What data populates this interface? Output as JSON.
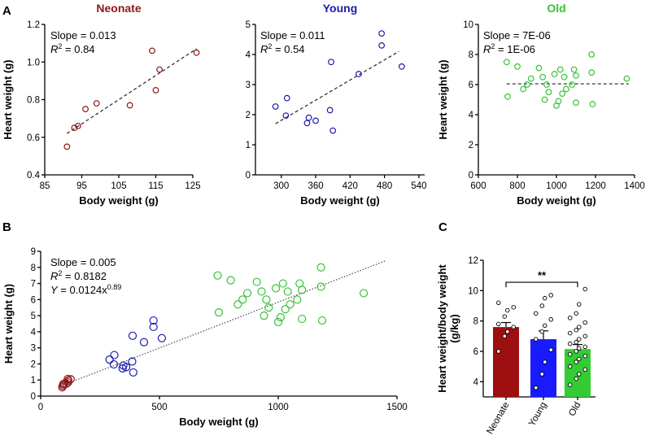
{
  "colors": {
    "neonate": "#8b1a1a",
    "young": "#1c1cad",
    "old": "#36c236",
    "neonate_bar": "#9e0f0f",
    "young_bar": "#1a1aff",
    "old_bar": "#33cc33"
  },
  "panel_letters": {
    "a": "A",
    "b": "B",
    "c": "C"
  },
  "chart_data": [
    {
      "id": "A-neonate",
      "type": "scatter",
      "title": "Neonate",
      "color": "neonate",
      "xlabel": "Body weight (g)",
      "ylabel": "Heart weight (g)",
      "xlim": [
        85,
        125
      ],
      "ylim": [
        0.4,
        1.2
      ],
      "xticks": [
        85,
        95,
        105,
        115,
        125
      ],
      "yticks": [
        0.4,
        0.6,
        0.8,
        1.0,
        1.2
      ],
      "xtick_labels": [
        "85",
        "95",
        "105",
        "115",
        "125"
      ],
      "ytick_labels": [
        "0.4",
        "0.6",
        "0.8",
        "1.0",
        "1.2"
      ],
      "x": [
        91,
        93,
        94,
        96,
        99,
        108,
        114,
        115,
        116,
        126
      ],
      "y": [
        0.55,
        0.65,
        0.66,
        0.75,
        0.78,
        0.77,
        1.06,
        0.85,
        0.96,
        1.05
      ],
      "trend": {
        "style": "dashed",
        "x": [
          91,
          126
        ],
        "y": [
          0.62,
          1.07
        ]
      },
      "annotation": {
        "slope": "Slope = 0.013",
        "r2_prefix": "R",
        "r2_exp": "2",
        "r2_value": " = 0.84"
      }
    },
    {
      "id": "A-young",
      "type": "scatter",
      "title": "Young",
      "color": "young",
      "xlabel": "Body weight (g)",
      "ylabel": "",
      "xlim": [
        255,
        550
      ],
      "ylim": [
        0,
        5
      ],
      "xticks": [
        300,
        360,
        420,
        480,
        540
      ],
      "yticks": [
        0,
        1,
        2,
        3,
        4,
        5
      ],
      "xtick_labels": [
        "300",
        "360",
        "420",
        "480",
        "540"
      ],
      "ytick_labels": [
        "0",
        "1",
        "2",
        "3",
        "4",
        "5"
      ],
      "x": [
        290,
        308,
        310,
        345,
        348,
        360,
        385,
        387,
        390,
        435,
        475,
        475,
        510
      ],
      "y": [
        2.27,
        1.97,
        2.55,
        1.72,
        1.9,
        1.8,
        2.15,
        3.75,
        1.47,
        3.35,
        4.3,
        4.7,
        3.6
      ],
      "trend": {
        "style": "dashed",
        "x": [
          290,
          505
        ],
        "y": [
          1.7,
          4.1
        ]
      },
      "annotation": {
        "slope": "Slope = 0.011",
        "r2_prefix": "R",
        "r2_exp": "2",
        "r2_value": " = 0.54"
      }
    },
    {
      "id": "A-old",
      "type": "scatter",
      "title": "Old",
      "color": "old",
      "xlabel": "Body weight (g)",
      "ylabel": "Heart weight (g)",
      "xlim": [
        600,
        1400
      ],
      "ylim": [
        0,
        10
      ],
      "xticks": [
        600,
        800,
        1000,
        1200,
        1400
      ],
      "yticks": [
        0,
        2,
        4,
        6,
        8,
        10
      ],
      "xtick_labels": [
        "600",
        "800",
        "1000",
        "1200",
        "1400"
      ],
      "ytick_labels": [
        "0",
        "2",
        "4",
        "6",
        "8",
        "10"
      ],
      "x": [
        745,
        750,
        800,
        830,
        850,
        870,
        910,
        930,
        940,
        950,
        960,
        990,
        1000,
        1010,
        1020,
        1030,
        1040,
        1050,
        1080,
        1090,
        1100,
        1100,
        1180,
        1180,
        1185,
        1360
      ],
      "y": [
        7.5,
        5.2,
        7.2,
        5.7,
        6.0,
        6.4,
        7.1,
        6.5,
        5.0,
        6.0,
        5.5,
        6.7,
        4.6,
        4.9,
        7.0,
        5.4,
        6.5,
        5.7,
        6.0,
        7.0,
        4.8,
        6.6,
        8.0,
        6.8,
        4.7,
        6.4
      ],
      "trend": {
        "style": "dashed",
        "x": [
          745,
          1370
        ],
        "y": [
          6.05,
          6.05
        ]
      },
      "annotation": {
        "slope": "Slope = 7E-06",
        "r2_prefix": "R",
        "r2_exp": "2",
        "r2_value": " = 1E-06"
      }
    },
    {
      "id": "B-combined",
      "type": "scatter",
      "title": "",
      "xlabel": "Body weight (g)",
      "ylabel": "Heart weight (g)",
      "xlim": [
        0,
        1500
      ],
      "ylim": [
        0,
        9
      ],
      "xticks": [
        0,
        500,
        1000,
        1500
      ],
      "yticks": [
        0,
        1,
        2,
        3,
        4,
        5,
        6,
        7,
        8,
        9
      ],
      "xtick_labels": [
        "0",
        "500",
        "1000",
        "1500"
      ],
      "ytick_labels": [
        "0",
        "1",
        "2",
        "3",
        "4",
        "5",
        "6",
        "7",
        "8",
        "9"
      ],
      "series": [
        {
          "name": "Neonate",
          "color": "neonate",
          "x": [
            91,
            93,
            94,
            96,
            99,
            108,
            114,
            115,
            116,
            126
          ],
          "y": [
            0.55,
            0.65,
            0.66,
            0.75,
            0.78,
            0.77,
            1.06,
            0.85,
            0.96,
            1.05
          ]
        },
        {
          "name": "Young",
          "color": "young",
          "x": [
            290,
            308,
            310,
            345,
            348,
            360,
            385,
            387,
            390,
            435,
            475,
            475,
            510
          ],
          "y": [
            2.27,
            1.97,
            2.55,
            1.72,
            1.9,
            1.8,
            2.15,
            3.75,
            1.47,
            3.35,
            4.3,
            4.7,
            3.6
          ]
        },
        {
          "name": "Old",
          "color": "old",
          "x": [
            745,
            750,
            800,
            830,
            850,
            870,
            910,
            930,
            940,
            950,
            960,
            990,
            1000,
            1010,
            1020,
            1030,
            1040,
            1050,
            1080,
            1090,
            1100,
            1100,
            1180,
            1180,
            1185,
            1360
          ],
          "y": [
            7.5,
            5.2,
            7.2,
            5.7,
            6.0,
            6.4,
            7.1,
            6.5,
            5.0,
            6.0,
            5.5,
            6.7,
            4.6,
            4.9,
            7.0,
            5.4,
            6.5,
            5.7,
            6.0,
            7.0,
            4.8,
            6.6,
            8.0,
            6.8,
            4.7,
            6.4
          ]
        }
      ],
      "trend": {
        "style": "dotted",
        "x": [
          80,
          1450
        ],
        "y": [
          0.6,
          8.4
        ]
      },
      "annotation": {
        "slope": "Slope = 0.005",
        "r2_prefix": "R",
        "r2_exp": "2",
        "r2_value": " = 0.8182",
        "eq_prefix": "Y",
        "eq_body": " = 0.0124x",
        "eq_exp": "0.89"
      }
    },
    {
      "id": "C-ratio",
      "type": "bar",
      "xlabel": "",
      "ylabel_line1": "Heart weight/body weight",
      "ylabel_line2": "(g/kg)",
      "ylim": [
        3,
        12
      ],
      "yticks": [
        4,
        6,
        8,
        10,
        12
      ],
      "ytick_labels": [
        "4",
        "6",
        "8",
        "10",
        "12"
      ],
      "categories": [
        "Neonate",
        "Young",
        "Old"
      ],
      "colors": [
        "neonate_bar",
        "young_bar",
        "old_bar"
      ],
      "values": [
        7.6,
        6.8,
        6.15
      ],
      "sem": [
        0.3,
        0.55,
        0.3
      ],
      "points": [
        [
          6.0,
          7.0,
          7.3,
          7.6,
          7.8,
          8.3,
          8.7,
          8.9,
          9.2
        ],
        [
          3.6,
          4.5,
          5.3,
          6.1,
          6.8,
          7.3,
          7.7,
          8.1,
          8.5,
          9.0,
          9.5,
          9.7
        ],
        [
          3.8,
          4.2,
          4.5,
          4.8,
          5.0,
          5.3,
          5.5,
          5.7,
          5.8,
          6.0,
          6.2,
          6.3,
          6.5,
          6.6,
          6.8,
          7.0,
          7.2,
          7.4,
          7.6,
          7.9,
          8.2,
          8.5,
          9.1,
          10.1
        ]
      ],
      "significance": {
        "label": "**",
        "from": "Neonate",
        "to": "Old",
        "y": 10.55
      }
    }
  ]
}
